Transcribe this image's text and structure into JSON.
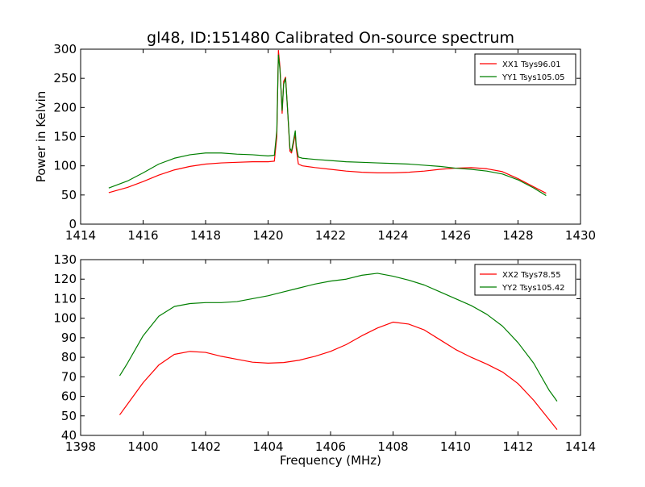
{
  "title": "gl48, ID:151480 Calibrated On-source spectrum",
  "colors": {
    "red": "#ff0000",
    "green": "#007f00"
  },
  "chart_data": [
    {
      "type": "line",
      "xlim": [
        1414,
        1430
      ],
      "ylim": [
        0,
        300
      ],
      "xticks": [
        1414,
        1416,
        1418,
        1420,
        1422,
        1424,
        1426,
        1428,
        1430
      ],
      "yticks": [
        0,
        50,
        100,
        150,
        200,
        250,
        300
      ],
      "xlabel": "",
      "ylabel": "Power in Kelvin",
      "legend_position": "top-right",
      "series": [
        {
          "name": "XX1 Tsys96.01",
          "color_key": "red",
          "points": [
            [
              1414.9,
              54
            ],
            [
              1415.5,
              63
            ],
            [
              1416.0,
              73
            ],
            [
              1416.5,
              84
            ],
            [
              1417.0,
              93
            ],
            [
              1417.5,
              99
            ],
            [
              1418.0,
              103
            ],
            [
              1418.5,
              105
            ],
            [
              1419.0,
              106
            ],
            [
              1419.5,
              107
            ],
            [
              1420.0,
              107
            ],
            [
              1420.2,
              108
            ],
            [
              1420.28,
              150
            ],
            [
              1420.33,
              298
            ],
            [
              1420.38,
              270
            ],
            [
              1420.45,
              190
            ],
            [
              1420.5,
              245
            ],
            [
              1420.56,
              252
            ],
            [
              1420.62,
              200
            ],
            [
              1420.7,
              125
            ],
            [
              1420.75,
              122
            ],
            [
              1420.82,
              140
            ],
            [
              1420.87,
              155
            ],
            [
              1420.9,
              130
            ],
            [
              1420.97,
              103
            ],
            [
              1421.1,
              100
            ],
            [
              1421.5,
              97
            ],
            [
              1422.0,
              94
            ],
            [
              1422.5,
              91
            ],
            [
              1423.0,
              89
            ],
            [
              1423.5,
              88
            ],
            [
              1424.0,
              88
            ],
            [
              1424.5,
              89
            ],
            [
              1425.0,
              91
            ],
            [
              1425.5,
              94
            ],
            [
              1426.0,
              96
            ],
            [
              1426.5,
              97
            ],
            [
              1427.0,
              95
            ],
            [
              1427.5,
              90
            ],
            [
              1428.0,
              78
            ],
            [
              1428.5,
              64
            ],
            [
              1428.9,
              53
            ]
          ]
        },
        {
          "name": "YY1 Tsys105.05",
          "color_key": "green",
          "points": [
            [
              1414.9,
              62
            ],
            [
              1415.5,
              74
            ],
            [
              1416.0,
              88
            ],
            [
              1416.5,
              103
            ],
            [
              1417.0,
              113
            ],
            [
              1417.5,
              119
            ],
            [
              1418.0,
              122
            ],
            [
              1418.5,
              122
            ],
            [
              1419.0,
              120
            ],
            [
              1419.5,
              119
            ],
            [
              1420.0,
              117
            ],
            [
              1420.2,
              118
            ],
            [
              1420.28,
              160
            ],
            [
              1420.33,
              290
            ],
            [
              1420.38,
              265
            ],
            [
              1420.45,
              195
            ],
            [
              1420.5,
              240
            ],
            [
              1420.56,
              250
            ],
            [
              1420.62,
              200
            ],
            [
              1420.7,
              130
            ],
            [
              1420.75,
              125
            ],
            [
              1420.82,
              145
            ],
            [
              1420.87,
              160
            ],
            [
              1420.9,
              135
            ],
            [
              1420.97,
              115
            ],
            [
              1421.1,
              113
            ],
            [
              1421.5,
              111
            ],
            [
              1422.0,
              109
            ],
            [
              1422.5,
              107
            ],
            [
              1423.0,
              106
            ],
            [
              1423.5,
              105
            ],
            [
              1424.0,
              104
            ],
            [
              1424.5,
              103
            ],
            [
              1425.0,
              101
            ],
            [
              1425.5,
              99
            ],
            [
              1426.0,
              96
            ],
            [
              1426.5,
              94
            ],
            [
              1427.0,
              91
            ],
            [
              1427.5,
              86
            ],
            [
              1428.0,
              76
            ],
            [
              1428.5,
              62
            ],
            [
              1428.9,
              49
            ]
          ]
        }
      ]
    },
    {
      "type": "line",
      "xlim": [
        1398,
        1414
      ],
      "ylim": [
        40,
        130
      ],
      "xticks": [
        1398,
        1400,
        1402,
        1404,
        1406,
        1408,
        1410,
        1412,
        1414
      ],
      "yticks": [
        40,
        50,
        60,
        70,
        80,
        90,
        100,
        110,
        120,
        130
      ],
      "xlabel": "Frequency (MHz)",
      "ylabel": "",
      "legend_position": "top-right",
      "series": [
        {
          "name": "XX2 Tsys78.55",
          "color_key": "red",
          "points": [
            [
              1399.25,
              50.5
            ],
            [
              1399.5,
              56
            ],
            [
              1400.0,
              67
            ],
            [
              1400.5,
              76
            ],
            [
              1401.0,
              81.5
            ],
            [
              1401.5,
              83
            ],
            [
              1402.0,
              82.5
            ],
            [
              1402.5,
              80.5
            ],
            [
              1403.0,
              79
            ],
            [
              1403.5,
              77.5
            ],
            [
              1404.0,
              77
            ],
            [
              1404.5,
              77.3
            ],
            [
              1405.0,
              78.5
            ],
            [
              1405.5,
              80.5
            ],
            [
              1406.0,
              83
            ],
            [
              1406.5,
              86.5
            ],
            [
              1407.0,
              91
            ],
            [
              1407.5,
              95
            ],
            [
              1408.0,
              98
            ],
            [
              1408.5,
              97
            ],
            [
              1409.0,
              94
            ],
            [
              1409.5,
              89
            ],
            [
              1410.0,
              84
            ],
            [
              1410.5,
              80
            ],
            [
              1411.0,
              76.5
            ],
            [
              1411.5,
              72.5
            ],
            [
              1412.0,
              66.5
            ],
            [
              1412.5,
              58
            ],
            [
              1413.0,
              48
            ],
            [
              1413.25,
              43
            ]
          ]
        },
        {
          "name": "YY2 Tsys105.42",
          "color_key": "green",
          "points": [
            [
              1399.25,
              70.5
            ],
            [
              1399.5,
              77
            ],
            [
              1400.0,
              91
            ],
            [
              1400.5,
              101
            ],
            [
              1401.0,
              106
            ],
            [
              1401.5,
              107.5
            ],
            [
              1402.0,
              108
            ],
            [
              1402.5,
              108
            ],
            [
              1403.0,
              108.5
            ],
            [
              1403.5,
              110
            ],
            [
              1404.0,
              111.5
            ],
            [
              1404.5,
              113.5
            ],
            [
              1405.0,
              115.5
            ],
            [
              1405.5,
              117.5
            ],
            [
              1406.0,
              119
            ],
            [
              1406.5,
              120
            ],
            [
              1407.0,
              122
            ],
            [
              1407.5,
              123
            ],
            [
              1408.0,
              121.5
            ],
            [
              1408.5,
              119.5
            ],
            [
              1409.0,
              117
            ],
            [
              1409.5,
              113.5
            ],
            [
              1410.0,
              110
            ],
            [
              1410.5,
              106.5
            ],
            [
              1411.0,
              102
            ],
            [
              1411.5,
              96
            ],
            [
              1412.0,
              87.5
            ],
            [
              1412.5,
              77
            ],
            [
              1413.0,
              63
            ],
            [
              1413.25,
              57.5
            ]
          ]
        }
      ]
    }
  ]
}
